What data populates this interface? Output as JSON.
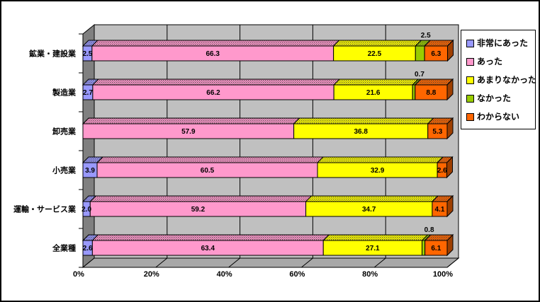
{
  "chart_data": {
    "type": "bar",
    "orientation": "horizontal",
    "stacked": true,
    "style": "3d-excel",
    "categories": [
      "鉱業・建設業",
      "製造業",
      "卸売業",
      "小売業",
      "運輸・サービス業",
      "全業種"
    ],
    "series": [
      {
        "name": "非常にあった",
        "color": "#9999FF",
        "label_position": "inside",
        "values": [
          2.5,
          2.7,
          0,
          3.9,
          2.0,
          2.6
        ]
      },
      {
        "name": "あった",
        "color": "#FF99CC",
        "label_position": "inside",
        "values": [
          66.3,
          66.2,
          57.9,
          60.5,
          59.2,
          63.4
        ]
      },
      {
        "name": "あまりなかった",
        "color": "#FFFF00",
        "label_position": "inside",
        "values": [
          22.5,
          21.6,
          36.8,
          32.9,
          34.7,
          27.1
        ]
      },
      {
        "name": "なかった",
        "color": "#99CC00",
        "label_position": "above",
        "values": [
          2.5,
          0.7,
          0,
          0,
          0,
          0.8
        ]
      },
      {
        "name": "わからない",
        "color": "#FF6600",
        "label_position": "inside",
        "values": [
          6.3,
          8.8,
          5.3,
          2.6,
          4.1,
          6.1
        ]
      }
    ],
    "x_ticks": [
      "0%",
      "20%",
      "40%",
      "60%",
      "80%",
      "100%"
    ],
    "xlim": [
      0,
      100
    ],
    "grid": true,
    "legend_position": "right",
    "value_label_decimals": 1
  },
  "colors": {
    "plot_back_wall": "#C0C0C0",
    "side_wall": "#808080",
    "floor": "#A8A8A8",
    "gridline": "#000000",
    "outline": "#000000",
    "background": "#FFFFFF",
    "text": "#000000"
  }
}
